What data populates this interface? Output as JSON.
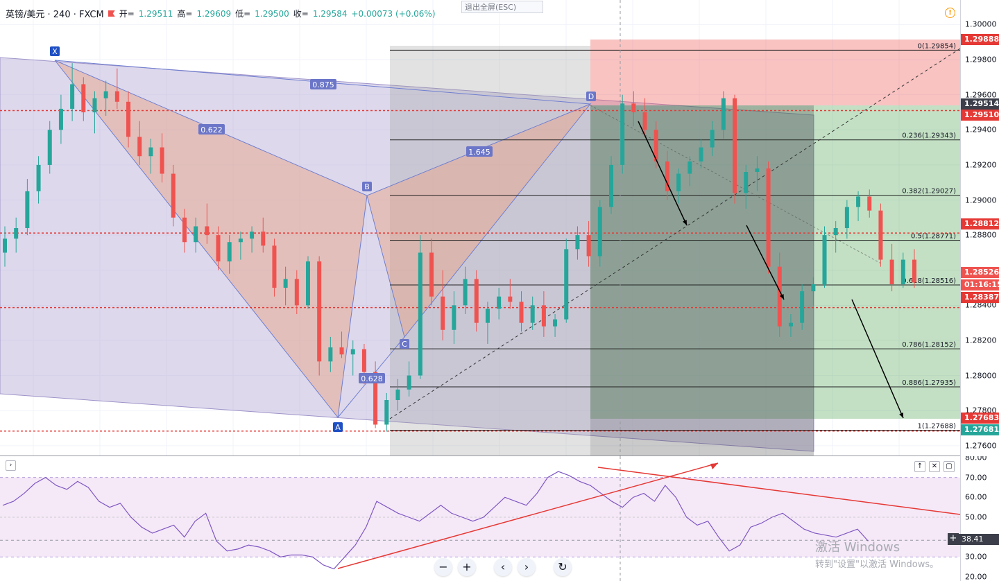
{
  "legend": {
    "symbol": "英镑/美元 · 240 · FXCM",
    "open_label": "开=",
    "open": "1.29511",
    "high_label": "高=",
    "high": "1.29609",
    "low_label": "低=",
    "low": "1.29500",
    "close_label": "收=",
    "close": "1.29584",
    "change": "+0.00073 (+0.06%)"
  },
  "exit_fullscreen": "退出全屏(ESC)",
  "colors": {
    "up": "#26a69a",
    "down": "#ef5350",
    "pattern": "#7b86c9",
    "dotted_line": "#e53935"
  },
  "price_axis": {
    "ticks": [
      "1.30000",
      "1.29800",
      "1.29600",
      "1.29400",
      "1.29200",
      "1.29000",
      "1.28800",
      "1.28600",
      "1.28400",
      "1.28200",
      "1.28000",
      "1.27800",
      "1.27600"
    ],
    "tags": [
      {
        "text": "1.29888",
        "color": "#e53935"
      },
      {
        "text": "1.29514",
        "color": "#3c3f4a"
      },
      {
        "text": "1.29510",
        "color": "#e53935"
      },
      {
        "text": "1.28812",
        "color": "#e53935"
      },
      {
        "text": "1.28526",
        "color": "#ef5350"
      },
      {
        "text": "01:16:15",
        "color": "#ef5350"
      },
      {
        "text": "1.28387",
        "color": "#e53935"
      },
      {
        "text": "1.27683",
        "color": "#e53935"
      },
      {
        "text": "1.27681",
        "color": "#26a69a"
      }
    ]
  },
  "rsi_axis": {
    "ticks": [
      "80.00",
      "70.00",
      "60.00",
      "50.00",
      "40.00",
      "30.00",
      "20.00"
    ],
    "current": "38.41"
  },
  "pattern_points": [
    "X",
    "A",
    "B",
    "C",
    "D"
  ],
  "pattern_ratios": [
    "0.875",
    "0.622",
    "1.645",
    "0.628"
  ],
  "fib_levels": [
    {
      "label": "0(1.29854)",
      "price": 1.29854
    },
    {
      "label": "0.236(1.29343)",
      "price": 1.29343
    },
    {
      "label": "0.382(1.29027)",
      "price": 1.29027
    },
    {
      "label": "0.5(1.28771)",
      "price": 1.28771
    },
    {
      "label": "0.618(1.28516)",
      "price": 1.28516
    },
    {
      "label": "0.786(1.28152)",
      "price": 1.28152
    },
    {
      "label": "0.886(1.27935)",
      "price": 1.27935
    },
    {
      "label": "1(1.27688)",
      "price": 1.27688
    }
  ],
  "horizontal_lines": [
    1.2951,
    1.28812,
    1.28387,
    1.27683
  ],
  "chart_data": {
    "type": "candlestick",
    "series": [
      {
        "name": "英镑/美元",
        "ohlc": [
          [
            1.287,
            1.2885,
            1.2862,
            1.2878
          ],
          [
            1.2878,
            1.289,
            1.287,
            1.2884
          ],
          [
            1.2884,
            1.2912,
            1.288,
            1.2905
          ],
          [
            1.2905,
            1.2925,
            1.2898,
            1.292
          ],
          [
            1.292,
            1.2945,
            1.2915,
            1.294
          ],
          [
            1.294,
            1.296,
            1.2932,
            1.2952
          ],
          [
            1.2952,
            1.2978,
            1.2945,
            1.2966
          ],
          [
            1.2966,
            1.297,
            1.2945,
            1.295
          ],
          [
            1.295,
            1.2962,
            1.2938,
            1.2958
          ],
          [
            1.2958,
            1.2968,
            1.2948,
            1.2962
          ],
          [
            1.2962,
            1.2975,
            1.2952,
            1.2956
          ],
          [
            1.2956,
            1.2962,
            1.293,
            1.2936
          ],
          [
            1.2936,
            1.2945,
            1.292,
            1.2925
          ],
          [
            1.2925,
            1.2935,
            1.2915,
            1.293
          ],
          [
            1.293,
            1.2938,
            1.291,
            1.2915
          ],
          [
            1.2915,
            1.292,
            1.2885,
            1.289
          ],
          [
            1.289,
            1.2895,
            1.287,
            1.2876
          ],
          [
            1.2876,
            1.289,
            1.287,
            1.2885
          ],
          [
            1.2885,
            1.2898,
            1.2875,
            1.288
          ],
          [
            1.288,
            1.2885,
            1.286,
            1.2865
          ],
          [
            1.2865,
            1.288,
            1.2858,
            1.2876
          ],
          [
            1.2876,
            1.2882,
            1.2866,
            1.2878
          ],
          [
            1.2878,
            1.2885,
            1.287,
            1.2882
          ],
          [
            1.2882,
            1.289,
            1.287,
            1.2874
          ],
          [
            1.2874,
            1.2878,
            1.2845,
            1.285
          ],
          [
            1.285,
            1.2862,
            1.284,
            1.2855
          ],
          [
            1.2855,
            1.286,
            1.2835,
            1.284
          ],
          [
            1.284,
            1.2868,
            1.2838,
            1.2865
          ],
          [
            1.2865,
            1.2868,
            1.28,
            1.2808
          ],
          [
            1.2808,
            1.2822,
            1.2802,
            1.2816
          ],
          [
            1.2816,
            1.2825,
            1.281,
            1.2812
          ],
          [
            1.2812,
            1.282,
            1.28,
            1.2815
          ],
          [
            1.2815,
            1.2818,
            1.2795,
            1.2802
          ],
          [
            1.2802,
            1.2808,
            1.277,
            1.2772
          ],
          [
            1.2772,
            1.279,
            1.2768,
            1.2786
          ],
          [
            1.2786,
            1.2798,
            1.278,
            1.2792
          ],
          [
            1.2792,
            1.2808,
            1.2788,
            1.28
          ],
          [
            1.28,
            1.288,
            1.2798,
            1.287
          ],
          [
            1.287,
            1.2878,
            1.284,
            1.2845
          ],
          [
            1.2845,
            1.286,
            1.282,
            1.2826
          ],
          [
            1.2826,
            1.2848,
            1.2818,
            1.284
          ],
          [
            1.284,
            1.2862,
            1.2835,
            1.2855
          ],
          [
            1.2855,
            1.286,
            1.2825,
            1.283
          ],
          [
            1.283,
            1.2842,
            1.2818,
            1.2838
          ],
          [
            1.2838,
            1.285,
            1.2832,
            1.2845
          ],
          [
            1.2845,
            1.2855,
            1.2838,
            1.2842
          ],
          [
            1.2842,
            1.2848,
            1.2825,
            1.283
          ],
          [
            1.283,
            1.2845,
            1.2826,
            1.284
          ],
          [
            1.284,
            1.2848,
            1.2822,
            1.2828
          ],
          [
            1.2828,
            1.2835,
            1.2822,
            1.2832
          ],
          [
            1.2832,
            1.2878,
            1.283,
            1.2872
          ],
          [
            1.2872,
            1.2885,
            1.2866,
            1.288
          ],
          [
            1.288,
            1.2888,
            1.2862,
            1.2868
          ],
          [
            1.2868,
            1.29,
            1.2862,
            1.2896
          ],
          [
            1.2896,
            1.2925,
            1.2892,
            1.292
          ],
          [
            1.292,
            1.296,
            1.2915,
            1.2955
          ],
          [
            1.2955,
            1.2962,
            1.2942,
            1.295
          ],
          [
            1.295,
            1.2958,
            1.2936,
            1.294
          ],
          [
            1.294,
            1.2945,
            1.2918,
            1.2922
          ],
          [
            1.2922,
            1.2928,
            1.29,
            1.2905
          ],
          [
            1.2905,
            1.2918,
            1.2898,
            1.2915
          ],
          [
            1.2915,
            1.2925,
            1.2908,
            1.2922
          ],
          [
            1.2922,
            1.2935,
            1.2918,
            1.293
          ],
          [
            1.293,
            1.2945,
            1.2925,
            1.294
          ],
          [
            1.294,
            1.2962,
            1.2935,
            1.2958
          ],
          [
            1.2958,
            1.296,
            1.2898,
            1.2904
          ],
          [
            1.2904,
            1.292,
            1.2895,
            1.2916
          ],
          [
            1.2916,
            1.2925,
            1.2905,
            1.2918
          ],
          [
            1.2918,
            1.2922,
            1.2858,
            1.2862
          ],
          [
            1.2862,
            1.287,
            1.2822,
            1.2828
          ],
          [
            1.2828,
            1.2835,
            1.2822,
            1.283
          ],
          [
            1.283,
            1.2852,
            1.2826,
            1.2848
          ],
          [
            1.2848,
            1.2856,
            1.284,
            1.2852
          ],
          [
            1.2852,
            1.2885,
            1.285,
            1.288
          ],
          [
            1.288,
            1.2888,
            1.287,
            1.2884
          ],
          [
            1.2884,
            1.29,
            1.2878,
            1.2896
          ],
          [
            1.2896,
            1.2905,
            1.2888,
            1.2902
          ],
          [
            1.2902,
            1.2906,
            1.289,
            1.2894
          ],
          [
            1.2894,
            1.2898,
            1.2862,
            1.2866
          ],
          [
            1.2866,
            1.2875,
            1.2848,
            1.2852
          ],
          [
            1.2852,
            1.287,
            1.285,
            1.2866
          ],
          [
            1.2866,
            1.2872,
            1.285,
            1.2853
          ]
        ]
      }
    ],
    "rsi": {
      "name": "RSI",
      "values": [
        56,
        58,
        62,
        67,
        70,
        66,
        64,
        68,
        65,
        58,
        55,
        57,
        50,
        45,
        42,
        44,
        46,
        40,
        48,
        52,
        38,
        33,
        34,
        36,
        35,
        33,
        30,
        31,
        31,
        30,
        26,
        24,
        30,
        36,
        45,
        58,
        55,
        52,
        50,
        48,
        52,
        56,
        52,
        50,
        48,
        50,
        55,
        60,
        58,
        56,
        62,
        70,
        73,
        71,
        68,
        66,
        62,
        58,
        55,
        60,
        62,
        58,
        66,
        60,
        50,
        46,
        48,
        40,
        33,
        36,
        45,
        47,
        50,
        52,
        48,
        44,
        42,
        41,
        40,
        42,
        44,
        38
      ],
      "ylim": [
        20,
        80
      ],
      "levels": [
        70,
        30
      ]
    },
    "ylim": [
      1.2754,
      1.3014
    ]
  }
}
